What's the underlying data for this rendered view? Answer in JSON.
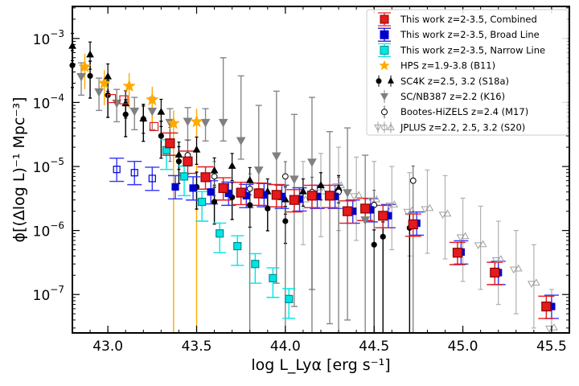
{
  "chart_data": {
    "type": "scatter",
    "title": "",
    "xlabel": "log L_Lyα [erg s⁻¹]",
    "ylabel": "ϕ[(Δlog L)⁻¹ Mpc⁻³]",
    "xlim": [
      42.8,
      45.6
    ],
    "ylim_log10": [
      -7.6,
      -2.5
    ],
    "yscale": "log",
    "grid": false,
    "legend": "top-right",
    "x_ticks": [
      43.0,
      43.5,
      44.0,
      44.5,
      45.0,
      45.5
    ],
    "x_tick_labels": [
      "43.0",
      "43.5",
      "44.0",
      "44.5",
      "45.0",
      "45.5"
    ],
    "y_ticks": [
      1e-07,
      1e-06,
      1e-05,
      0.0001,
      0.001
    ],
    "y_tick_labels": [
      "10",
      "10",
      "10",
      "10",
      "10"
    ],
    "y_tick_exponents": [
      "−7",
      "−6",
      "−5",
      "−4",
      "−3"
    ],
    "series": [
      {
        "name": "This work z=2-3.5, Combined",
        "marker": "square",
        "color": "#e41a1c",
        "x": [
          43.35,
          43.45,
          43.55,
          43.65,
          43.75,
          43.85,
          43.95,
          44.05,
          44.15,
          44.25,
          44.35,
          44.45,
          44.55,
          44.72,
          44.97,
          45.18,
          45.47
        ],
        "y": [
          2.3e-05,
          1.2e-05,
          6.8e-06,
          4.6e-06,
          3.9e-06,
          3.8e-06,
          3.6e-06,
          3e-06,
          3.5e-06,
          3.5e-06,
          2e-06,
          2.2e-06,
          1.7e-06,
          1.25e-06,
          4.5e-07,
          2.2e-07,
          6.5e-08
        ]
      },
      {
        "name": "This work z=2-3.5, Broad Line",
        "marker": "square",
        "color": "#0000cc",
        "x": [
          43.05,
          43.15,
          43.25,
          43.38,
          43.48,
          43.58,
          43.68,
          43.78,
          43.88,
          43.98,
          44.08,
          44.18,
          44.28,
          44.38,
          44.48,
          44.58,
          44.74,
          44.99,
          45.2,
          45.5
        ],
        "y": [
          9e-06,
          8e-06,
          6.5e-06,
          4.8e-06,
          4.6e-06,
          4e-06,
          3.8e-06,
          3.5e-06,
          3.6e-06,
          3.4e-06,
          3.1e-06,
          3.4e-06,
          3.4e-06,
          2e-06,
          2.1e-06,
          1.7e-06,
          1.3e-06,
          4.6e-07,
          2.2e-07,
          6.5e-08
        ]
      },
      {
        "name": "This work z=2-3.5, Narrow Line",
        "marker": "square",
        "color": "#00e5e5",
        "x": [
          43.33,
          43.43,
          43.53,
          43.63,
          43.73,
          43.83,
          43.93,
          44.02
        ],
        "y": [
          1.8e-05,
          7e-06,
          2.8e-06,
          9e-07,
          5.7e-07,
          3e-07,
          1.8e-07,
          8.5e-08
        ]
      },
      {
        "name": "HPS z=1.9-3.8 (B11)",
        "marker": "star",
        "color": "#ffaa00",
        "x": [
          42.87,
          42.98,
          43.12,
          43.25,
          43.37,
          43.5
        ],
        "y": [
          0.00036,
          0.0002,
          0.00018,
          0.00011,
          4.7e-05,
          5e-05
        ]
      },
      {
        "name": "SC4K z=2.5, 3.2 (S18a)",
        "marker": "circle",
        "color": "#000000",
        "x": [
          42.8,
          42.9,
          43.0,
          43.1,
          43.2,
          43.3,
          43.4,
          43.5,
          43.6,
          43.7,
          43.8,
          43.9,
          44.0,
          44.5,
          44.55,
          44.7
        ],
        "y": [
          0.00038,
          0.00026,
          0.00013,
          6.5e-05,
          5.5e-05,
          3e-05,
          1.2e-05,
          4.8e-06,
          2.8e-06,
          3.3e-06,
          2.5e-06,
          2.2e-06,
          1.4e-06,
          6e-07,
          8e-07,
          1.1e-06
        ]
      },
      {
        "name": "SC4K z=2.5, 3.2 (S18a) triangles",
        "marker": "triangle-up",
        "color": "#000000",
        "x": [
          42.8,
          42.9,
          43.0,
          43.1,
          43.2,
          43.3,
          43.4,
          43.5,
          43.6,
          43.7,
          43.8,
          43.9,
          44.0,
          44.1,
          44.2,
          44.3
        ],
        "y": [
          0.00075,
          0.00055,
          0.00025,
          9.5e-05,
          5.5e-05,
          7e-05,
          1.5e-05,
          1.8e-05,
          8.5e-06,
          1e-05,
          6e-06,
          4e-06,
          3e-06,
          4e-06,
          5e-06,
          4.5e-06
        ]
      },
      {
        "name": "SC/NB387 z=2.2 (K16)",
        "marker": "triangle-down",
        "color": "#808080",
        "x": [
          42.85,
          42.95,
          43.05,
          43.15,
          43.25,
          43.35,
          43.45,
          43.55,
          43.65,
          43.75,
          43.85,
          43.95,
          44.05,
          44.15,
          44.25,
          44.35,
          44.45
        ],
        "y": [
          0.00026,
          0.00015,
          0.0001,
          7.5e-05,
          7.5e-05,
          5e-05,
          5.2e-05,
          5e-05,
          5e-05,
          2.6e-05,
          9e-06,
          1.5e-05,
          6.5e-06,
          1.2e-05,
          3.5e-06,
          4e-06,
          1.5e-06
        ]
      },
      {
        "name": "Bootes-HiZELS z=2.4 (M17)",
        "marker": "open-circle",
        "color": "#000000",
        "x": [
          43.35,
          43.45,
          43.6,
          43.8,
          44.0,
          44.15,
          44.3,
          44.5,
          44.72
        ],
        "y": [
          2.4e-05,
          1.5e-05,
          7e-06,
          4.5e-06,
          7e-06,
          4e-06,
          4e-06,
          2.5e-06,
          6e-06
        ]
      },
      {
        "name": "JPLUS z=2.2, 2.5, 3.2 (S20)",
        "marker": "open-triangles",
        "color": "#a0a0a0",
        "x": [
          44.1,
          44.2,
          44.3,
          44.4,
          44.5,
          44.6,
          44.7,
          44.8,
          44.9,
          45.0,
          45.1,
          45.2,
          45.3,
          45.4,
          45.5
        ],
        "y": [
          3e-06,
          4e-06,
          5e-06,
          3.5e-06,
          3e-06,
          2.5e-06,
          2e-06,
          2.2e-06,
          1.8e-06,
          8e-07,
          6e-07,
          3.5e-07,
          2.5e-07,
          1.5e-07,
          3e-08
        ]
      }
    ]
  },
  "legend": {
    "items": [
      {
        "label": "This work z=2-3.5, Combined",
        "marker": "square",
        "color": "#e41a1c",
        "edge": "#8b0000"
      },
      {
        "label": "This work z=2-3.5, Broad Line",
        "marker": "square",
        "color": "#0000cc",
        "edge": "#0000cc"
      },
      {
        "label": "This work z=2-3.5, Narrow Line",
        "marker": "square",
        "color": "#00e5e5",
        "edge": "#008b8b"
      },
      {
        "label": "HPS z=1.9-3.8 (B11)",
        "marker": "star",
        "color": "#ffaa00",
        "edge": "#ffaa00"
      },
      {
        "label": "SC4K z=2.5, 3.2 (S18a)",
        "marker": "circle-triangle",
        "color": "#000000",
        "edge": "#000000"
      },
      {
        "label": "SC/NB387 z=2.2 (K16)",
        "marker": "triangle-down",
        "color": "#808080",
        "edge": "#808080"
      },
      {
        "label": "Bootes-HiZELS z=2.4 (M17)",
        "marker": "open-circle",
        "color": "#000000",
        "edge": "#000000"
      },
      {
        "label": "JPLUS z=2.2, 2.5, 3.2 (S20)",
        "marker": "open-triangles",
        "color": "#a0a0a0",
        "edge": "#a0a0a0"
      }
    ]
  }
}
